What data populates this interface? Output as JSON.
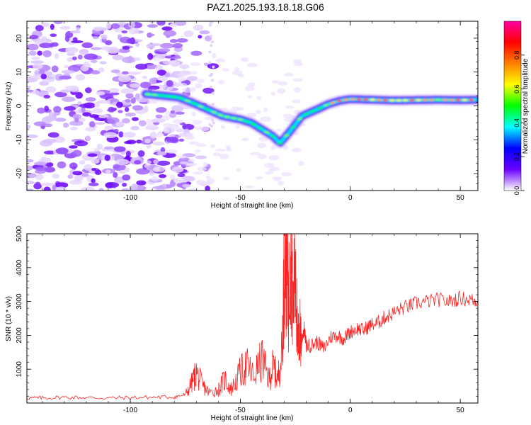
{
  "title": "PAZ1.2025.193.18.18.G06",
  "chart_data": [
    {
      "type": "heatmap",
      "title": "PAZ1.2025.193.18.18.G06",
      "xlabel": "Height of straight line (km)",
      "ylabel": "Frequency (Hz)",
      "xlim": [
        -147,
        58
      ],
      "ylim": [
        -25,
        25
      ],
      "xticks": [
        "-100",
        "-50",
        "0",
        "50"
      ],
      "yticks": [
        "20",
        "10",
        "0",
        "-10",
        "-20"
      ],
      "ridge_x": [
        -93,
        -85,
        -78,
        -72,
        -65,
        -58,
        -50,
        -45,
        -40,
        -35,
        -32,
        -28,
        -22,
        -15,
        -10,
        -5,
        0,
        10,
        20,
        30,
        40,
        50,
        58
      ],
      "ridge_y": [
        3.5,
        3,
        2.5,
        1,
        -1,
        -3,
        -4,
        -5,
        -7,
        -9,
        -11,
        -8,
        -3,
        -1,
        0.5,
        1.5,
        2,
        1.8,
        1.6,
        1.7,
        1.8,
        1.7,
        1.8
      ],
      "colorbar": {
        "label": "Normalized spectral amplitude",
        "range": [
          0.0,
          1.0
        ],
        "ticks": [
          "0.0",
          "0.2",
          "0.4",
          "0.6",
          "0.8"
        ],
        "colors": [
          "#ffffff",
          "#6a00ff",
          "#0000ff",
          "#00ffff",
          "#00ff00",
          "#ffff00",
          "#ff8000",
          "#ff0000",
          "#ff00a0"
        ]
      },
      "grid": false,
      "legend": "none"
    },
    {
      "type": "line",
      "xlabel": "Height of straight line (km)",
      "ylabel": "SNR (10 * v/v)",
      "xlim": [
        -147,
        58
      ],
      "ylim": [
        0,
        5000
      ],
      "xticks": [
        "-100",
        "-50",
        "0",
        "50"
      ],
      "yticks": [
        "5000",
        "4000",
        "3000",
        "2000",
        "1000"
      ],
      "color": "#ff2020",
      "x": [
        -147,
        -140,
        -130,
        -120,
        -110,
        -100,
        -90,
        -80,
        -75,
        -72,
        -70,
        -67,
        -64,
        -60,
        -57,
        -54,
        -50,
        -47,
        -44,
        -40,
        -37,
        -35,
        -33,
        -31,
        -30,
        -29,
        -28,
        -27,
        -26,
        -25,
        -24,
        -23,
        -22,
        -21,
        -20,
        -18,
        -15,
        -12,
        -9,
        -6,
        -3,
        0,
        3,
        6,
        9,
        12,
        15,
        18,
        22,
        26,
        30,
        35,
        40,
        45,
        50,
        55,
        58
      ],
      "values": [
        150,
        150,
        170,
        160,
        150,
        160,
        170,
        180,
        250,
        600,
        900,
        500,
        300,
        400,
        700,
        400,
        900,
        1100,
        800,
        1300,
        700,
        1100,
        700,
        1500,
        4100,
        4300,
        3000,
        5000,
        2500,
        4800,
        1600,
        2100,
        1900,
        2200,
        1700,
        1700,
        1800,
        1600,
        1950,
        2000,
        1900,
        2100,
        2200,
        2150,
        2300,
        2350,
        2500,
        2600,
        2750,
        2850,
        2950,
        3000,
        3050,
        3000,
        3100,
        3050,
        3000
      ],
      "grid": false,
      "legend": "none"
    }
  ]
}
